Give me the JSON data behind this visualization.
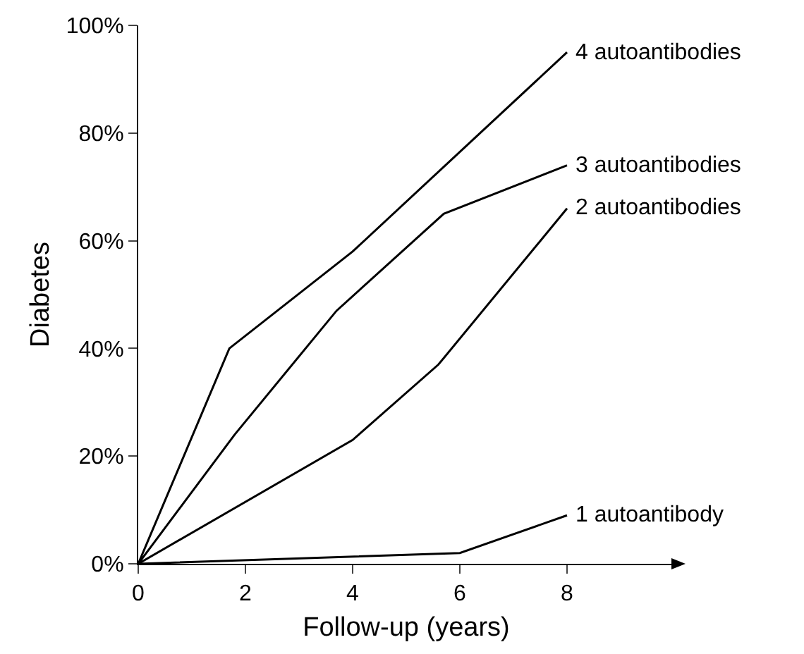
{
  "chart_data": {
    "type": "line",
    "xlabel": "Follow-up (years)",
    "ylabel": "Diabetes",
    "xlim": [
      0,
      10
    ],
    "xticks": [
      0,
      2,
      4,
      6,
      8
    ],
    "ylim": [
      0,
      100
    ],
    "yticks": [
      {
        "value": 0,
        "label": "0%"
      },
      {
        "value": 20,
        "label": "20%"
      },
      {
        "value": 40,
        "label": "40%"
      },
      {
        "value": 60,
        "label": "60%"
      },
      {
        "value": 80,
        "label": "80%"
      },
      {
        "value": 100,
        "label": "100%"
      }
    ],
    "grid": false,
    "legend": false,
    "marker": "none",
    "line_style": "solid",
    "series": [
      {
        "name": "4 autoantibodies",
        "color": "#000000",
        "x": [
          0,
          1.7,
          4,
          8
        ],
        "values": [
          0,
          40,
          58,
          95
        ]
      },
      {
        "name": "3 autoantibodies",
        "color": "#000000",
        "x": [
          0,
          1.8,
          3.7,
          5.7,
          8
        ],
        "values": [
          0,
          24,
          47,
          65,
          74
        ]
      },
      {
        "name": "2 autoantibodies",
        "color": "#000000",
        "x": [
          0,
          4,
          5.6,
          8
        ],
        "values": [
          0,
          23,
          37,
          66
        ]
      },
      {
        "name": "1 autoantibody",
        "color": "#000000",
        "x": [
          0,
          6,
          8
        ],
        "values": [
          0,
          2,
          9
        ]
      }
    ]
  }
}
